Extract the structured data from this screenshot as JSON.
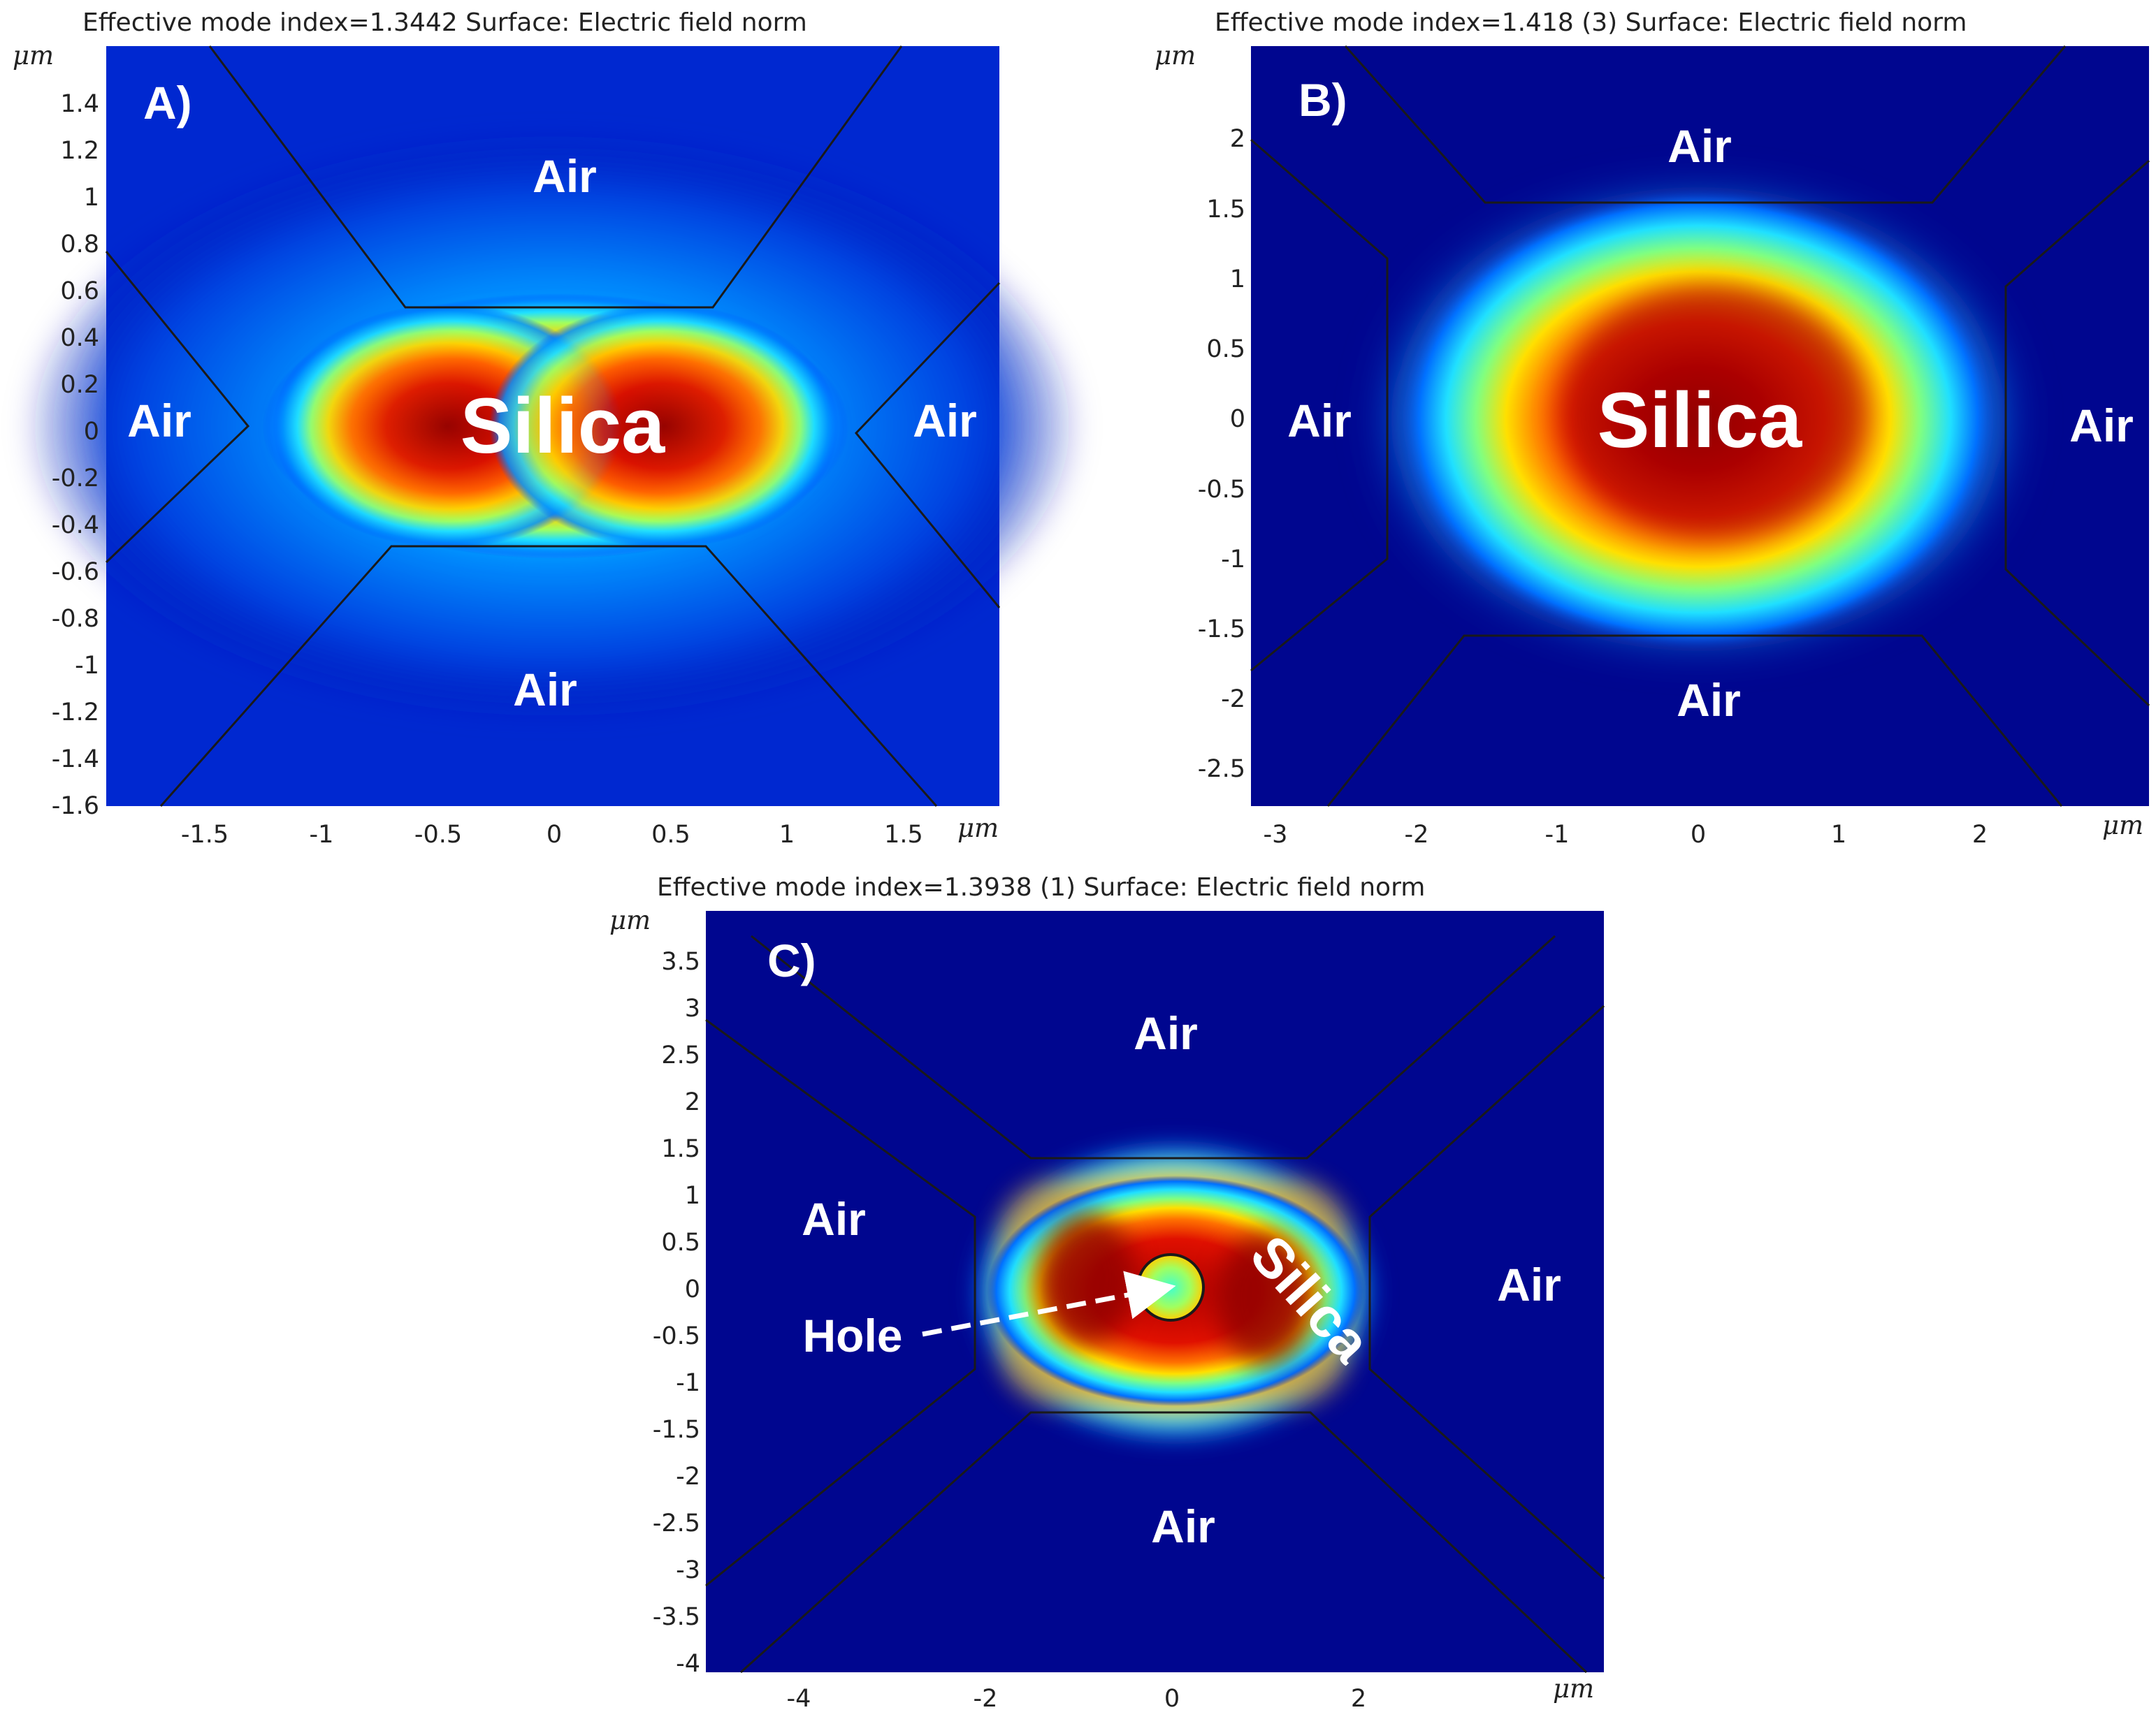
{
  "panels": [
    {
      "id": "A",
      "title": "Effective mode index=1.3442   Surface: Electric field norm",
      "letter": "A)",
      "x_ticks": [
        "-1.5",
        "-1",
        "-0.5",
        "0",
        "0.5",
        "1",
        "1.5"
      ],
      "y_ticks": [
        "1.4",
        "1.2",
        "1",
        "0.8",
        "0.6",
        "0.4",
        "0.2",
        "0",
        "-0.2",
        "-0.4",
        "-0.6",
        "-0.8",
        "-1",
        "-1.2",
        "-1.4",
        "-1.6"
      ],
      "unit": "μm",
      "labels": {
        "top": "Air",
        "bottom": "Air",
        "left": "Air",
        "right": "Air",
        "core": "Silica"
      }
    },
    {
      "id": "B",
      "title": "Effective mode index=1.418 (3)   Surface: Electric field norm",
      "letter": "B)",
      "x_ticks": [
        "-3",
        "-2",
        "-1",
        "0",
        "1",
        "2"
      ],
      "y_ticks": [
        "2",
        "1.5",
        "1",
        "0.5",
        "0",
        "-0.5",
        "-1",
        "-1.5",
        "-2",
        "-2.5"
      ],
      "unit": "μm",
      "labels": {
        "top": "Air",
        "bottom": "Air",
        "left": "Air",
        "right": "Air",
        "core": "Silica"
      }
    },
    {
      "id": "C",
      "title": "Effective mode index=1.3938 (1)   Surface: Electric field norm",
      "letter": "C)",
      "x_ticks": [
        "-4",
        "-2",
        "0",
        "2"
      ],
      "y_ticks": [
        "3.5",
        "3",
        "2.5",
        "2",
        "1.5",
        "1",
        "0.5",
        "0",
        "-0.5",
        "-1",
        "-1.5",
        "-2",
        "-2.5",
        "-3",
        "-3.5",
        "-4"
      ],
      "unit": "μm",
      "labels": {
        "top": "Air",
        "bottom": "Air",
        "left": "Air",
        "right": "Air",
        "core": "Silica",
        "hole": "Hole"
      }
    }
  ],
  "colors": {
    "background": "#00008b",
    "hot": "#8b0000",
    "boundary": "#1a1a1a",
    "label": "#ffffff"
  }
}
